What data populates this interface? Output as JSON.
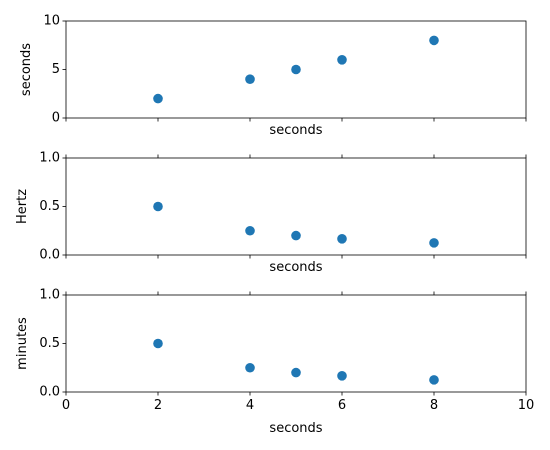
{
  "chart_data": [
    {
      "type": "scatter",
      "x": [
        2,
        4,
        5,
        6,
        8
      ],
      "y": [
        2,
        4,
        5,
        6,
        8
      ],
      "xlabel": "seconds",
      "ylabel": "seconds",
      "xlim": [
        0,
        10
      ],
      "ylim": [
        0,
        10
      ],
      "xticks": [
        0,
        2,
        4,
        6,
        8,
        10
      ],
      "yticks": [
        0,
        5,
        10
      ],
      "ytick_labels": [
        "0",
        "5",
        "10"
      ],
      "show_xtick_labels": false,
      "grid": false,
      "marker_color": "#1f77b4"
    },
    {
      "type": "scatter",
      "x": [
        2,
        4,
        5,
        6,
        8
      ],
      "y": [
        0.5,
        0.25,
        0.2,
        0.1667,
        0.125
      ],
      "xlabel": "seconds",
      "ylabel": "Hertz",
      "xlim": [
        0,
        10
      ],
      "ylim": [
        0,
        1
      ],
      "xticks": [
        0,
        2,
        4,
        6,
        8,
        10
      ],
      "yticks": [
        0,
        0.5,
        1
      ],
      "ytick_labels": [
        "0.0",
        "0.5",
        "1.0"
      ],
      "show_xtick_labels": false,
      "grid": false,
      "marker_color": "#1f77b4"
    },
    {
      "type": "scatter",
      "x": [
        2,
        4,
        5,
        6,
        8
      ],
      "y": [
        0.5,
        0.25,
        0.2,
        0.1667,
        0.125
      ],
      "xlabel": "seconds",
      "ylabel": "minutes",
      "xlim": [
        0,
        10
      ],
      "ylim": [
        0,
        1
      ],
      "xticks": [
        0,
        2,
        4,
        6,
        8,
        10
      ],
      "xtick_labels": [
        "0",
        "2",
        "4",
        "6",
        "8",
        "10"
      ],
      "yticks": [
        0,
        0.5,
        1
      ],
      "ytick_labels": [
        "0.0",
        "0.5",
        "1.0"
      ],
      "show_xtick_labels": true,
      "grid": false,
      "marker_color": "#1f77b4"
    }
  ]
}
